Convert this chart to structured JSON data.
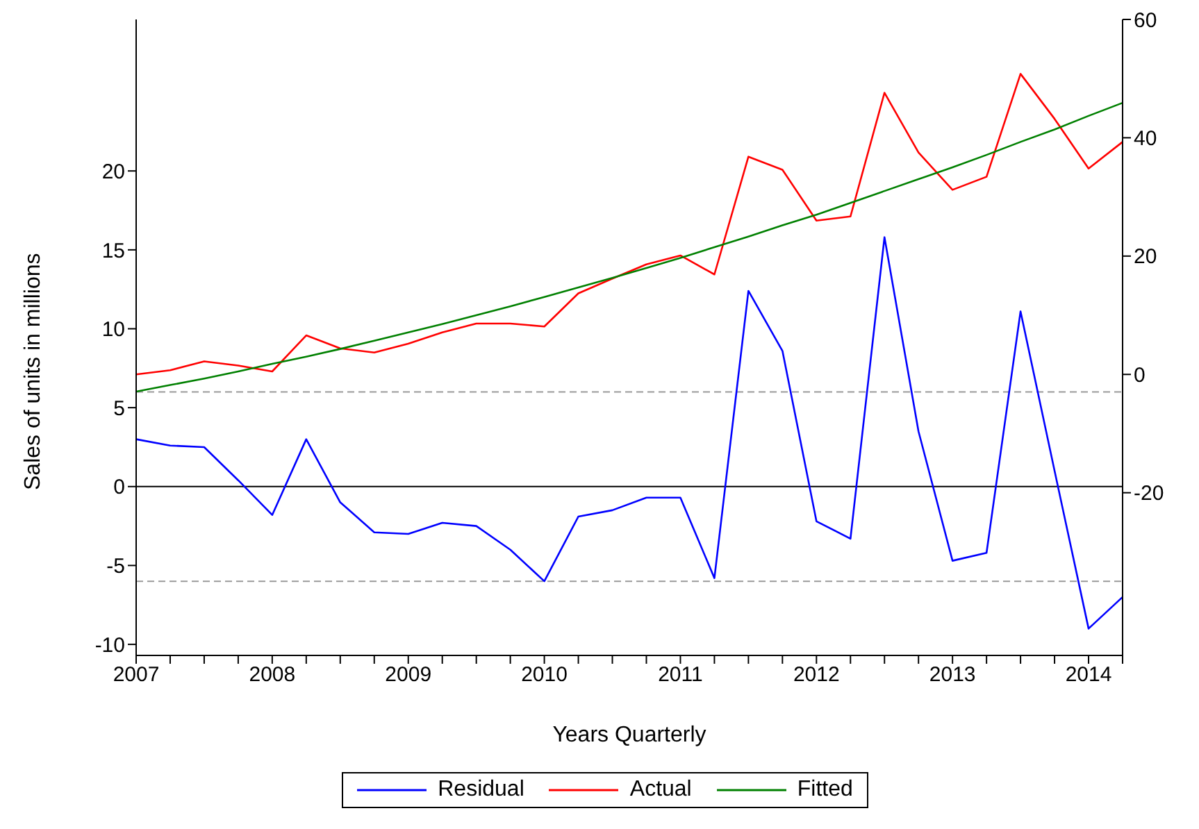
{
  "chart_data": {
    "type": "line",
    "xlabel": "Years Quarterly",
    "ylabel": "Sales of units in millions",
    "categories": [
      "2007",
      null,
      null,
      null,
      "2008",
      null,
      null,
      null,
      "2009",
      null,
      null,
      null,
      "2010",
      null,
      null,
      null,
      "2011",
      null,
      null,
      null,
      "2012",
      null,
      null,
      null,
      "2013",
      null,
      null,
      null,
      "2014",
      null
    ],
    "series": [
      {
        "name": "Residual",
        "color": "#0000ff",
        "values": [
          3,
          2.6,
          2.5,
          0.4,
          -1.8,
          3,
          -1,
          -2.9,
          -3,
          -2.3,
          -2.5,
          -4,
          -6,
          -1.9,
          -1.5,
          -0.7,
          -0.7,
          -5.8,
          12.4,
          8.6,
          -2.2,
          -3.3,
          15.8,
          3.5,
          -4.7,
          -4.2,
          11.1,
          1,
          -9,
          -7
        ]
      },
      {
        "name": "Actual",
        "color": "#ff0000",
        "axis": "y2",
        "values": [
          0,
          0.7,
          2.2,
          1.5,
          0.5,
          6.6,
          4.4,
          3.7,
          5.2,
          7.1,
          8.6,
          8.6,
          8.1,
          13.7,
          16.2,
          18.6,
          20.1,
          16.9,
          36.8,
          34.6,
          26,
          26.7,
          47.6,
          37.5,
          31.2,
          33.4,
          50.8,
          43.2,
          34.8,
          39.3
        ]
      },
      {
        "name": "Fitted",
        "color": "#008000",
        "axis": "y2",
        "values": [
          -2.9,
          -1.8,
          -0.7,
          0.5,
          1.8,
          3,
          4.3,
          5.7,
          7.1,
          8.5,
          10,
          11.5,
          13.1,
          14.7,
          16.3,
          18,
          19.7,
          21.5,
          23.3,
          25.2,
          27,
          29,
          31,
          33,
          35,
          37.1,
          39.3,
          41.4,
          43.7,
          45.9
        ]
      }
    ],
    "ylim": [
      -10.7,
      29.6
    ],
    "yticks": [
      -10,
      -5,
      0,
      5,
      10,
      15,
      20
    ],
    "y2lim": [
      -47.5,
      60
    ],
    "y2ticks": [
      -20,
      0,
      20,
      40,
      60
    ],
    "ref_lines": [
      {
        "axis": "y",
        "value": 0,
        "color": "#000000",
        "line_style": "solid"
      },
      {
        "axis": "y",
        "value": 6,
        "color": "#999999",
        "line_style": "dashed"
      },
      {
        "axis": "y",
        "value": -6,
        "color": "#999999",
        "line_style": "dashed"
      }
    ],
    "grid": false,
    "legend": "bottom",
    "marker": "none",
    "line_style": "solid"
  }
}
